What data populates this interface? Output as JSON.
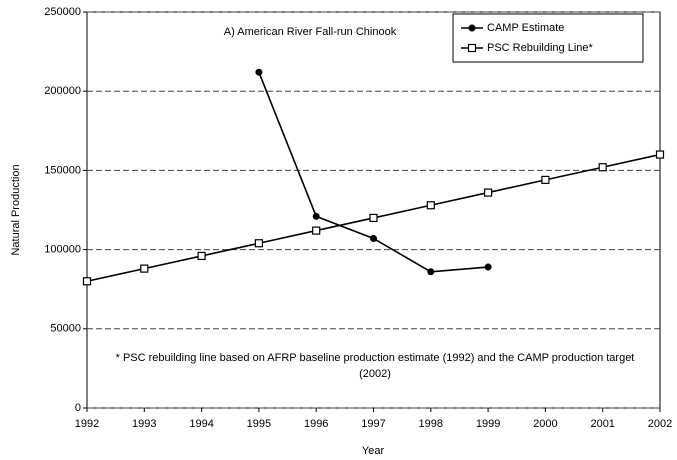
{
  "chart_data": {
    "type": "line",
    "annotation": "A) American River Fall-run Chinook",
    "footnote": "* PSC rebuilding line based on AFRP baseline production estimate (1992) and the CAMP production target (2002)",
    "x_label": "Year",
    "y_label": "Natural Production",
    "x": [
      1992,
      1993,
      1994,
      1995,
      1996,
      1997,
      1998,
      1999,
      2000,
      2001,
      2002
    ],
    "series": [
      {
        "name": "CAMP Estimate",
        "color": "#000000",
        "marker": "circle",
        "values": [
          null,
          null,
          null,
          212000,
          121000,
          107000,
          86000,
          89000,
          null,
          null,
          null
        ]
      },
      {
        "name": "PSC Rebuilding Line*",
        "color": "#000000",
        "marker": "square",
        "values": [
          80000,
          88000,
          96000,
          104000,
          112000,
          120000,
          128000,
          136000,
          144000,
          152000,
          160000
        ]
      }
    ],
    "xlim": [
      1992,
      2002
    ],
    "xticks": [
      1992,
      1993,
      1994,
      1995,
      1996,
      1997,
      1998,
      1999,
      2000,
      2001,
      2002
    ],
    "ylim": [
      0,
      250000
    ],
    "yticks": [
      0,
      50000,
      100000,
      150000,
      200000,
      250000
    ],
    "grid": true,
    "legend": "top-right"
  }
}
